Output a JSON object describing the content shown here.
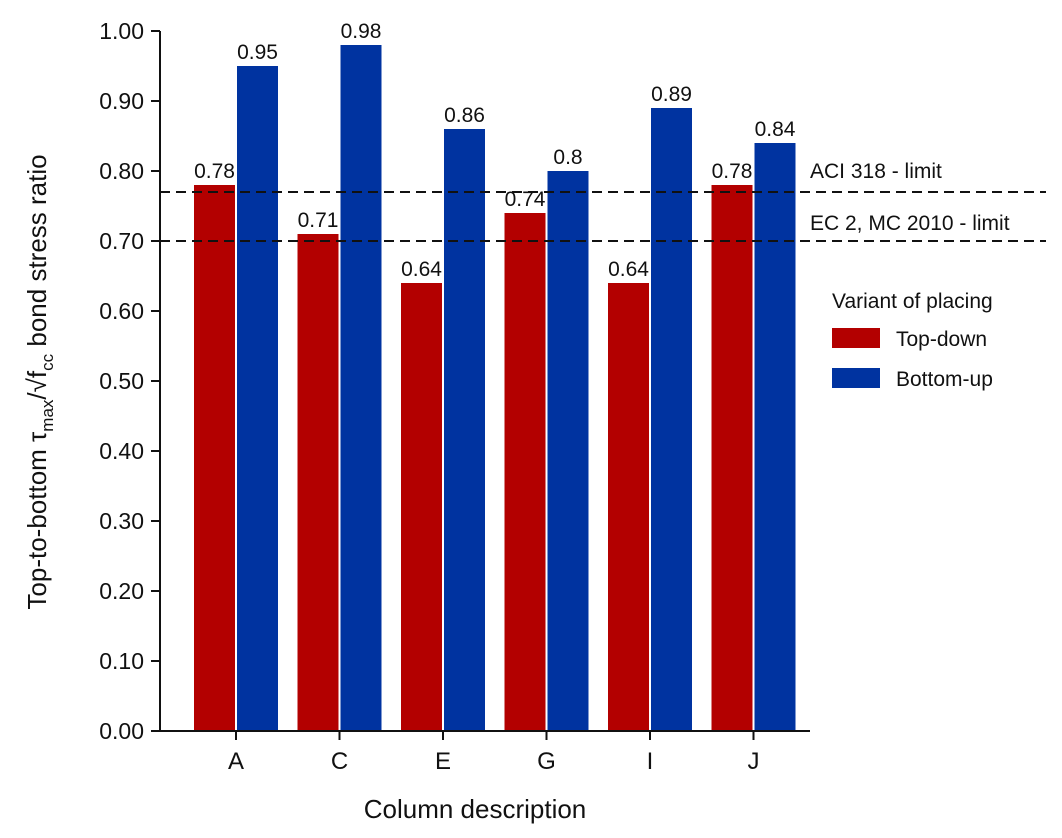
{
  "chart_data": {
    "type": "bar",
    "title": "",
    "xlabel": "Column description",
    "ylabel": {
      "prefix": "Top-to-bottom τ",
      "sub1": "max",
      "middle": "/√f",
      "sub2": "cc",
      "suffix": " bond stress ratio"
    },
    "ylim": [
      0,
      1.0
    ],
    "yticks": [
      "0.00",
      "0.10",
      "0.20",
      "0.30",
      "0.40",
      "0.50",
      "0.60",
      "0.70",
      "0.80",
      "0.90",
      "1.00"
    ],
    "categories": [
      "A",
      "C",
      "E",
      "G",
      "I",
      "J"
    ],
    "series": [
      {
        "name": "Top-down",
        "color": "#b30000",
        "values": [
          0.78,
          0.71,
          0.64,
          0.74,
          0.64,
          0.78
        ],
        "labels": [
          "0.78",
          "0.71",
          "0.64",
          "0.74",
          "0.64",
          "0.78"
        ]
      },
      {
        "name": "Bottom-up",
        "color": "#0033a0",
        "values": [
          0.95,
          0.98,
          0.86,
          0.8,
          0.89,
          0.84
        ],
        "labels": [
          "0.95",
          "0.98",
          "0.86",
          "0.8",
          "0.89",
          "0.84"
        ]
      }
    ],
    "reference_lines": [
      {
        "value": 0.77,
        "label": "ACI 318 - limit"
      },
      {
        "value": 0.7,
        "label": "EC 2, MC 2010 - limit"
      }
    ],
    "legend": {
      "title": "Variant of placing",
      "position": "right"
    },
    "grid": false
  }
}
